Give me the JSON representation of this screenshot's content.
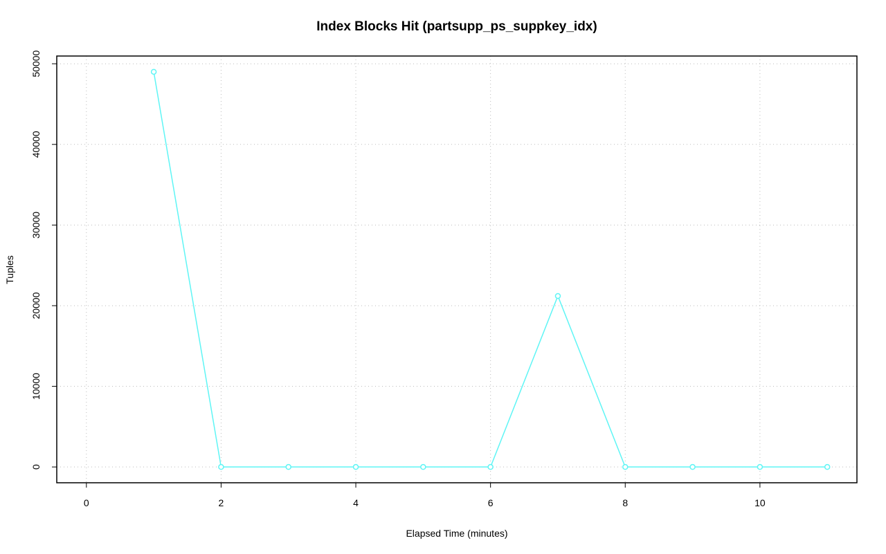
{
  "chart_data": {
    "type": "line",
    "title": "Index Blocks Hit (partsupp_ps_suppkey_idx)",
    "x_label": "Elapsed Time (minutes)",
    "y_label": "Tuples",
    "x": [
      1,
      2,
      3,
      4,
      5,
      6,
      7,
      8,
      9,
      10,
      11
    ],
    "series": [
      {
        "name": "partsupp_ps_suppkey_idx",
        "color": "#5ff5f5",
        "values": [
          49000,
          0,
          0,
          0,
          0,
          0,
          21200,
          0,
          0,
          0,
          0
        ]
      }
    ],
    "xlim": [
      -0.44,
      11.44
    ],
    "ylim": [
      -1960,
      50960
    ],
    "xticks": [
      0,
      2,
      4,
      6,
      8,
      10
    ],
    "yticks": [
      0,
      10000,
      20000,
      30000,
      40000,
      50000
    ],
    "grid": true
  }
}
